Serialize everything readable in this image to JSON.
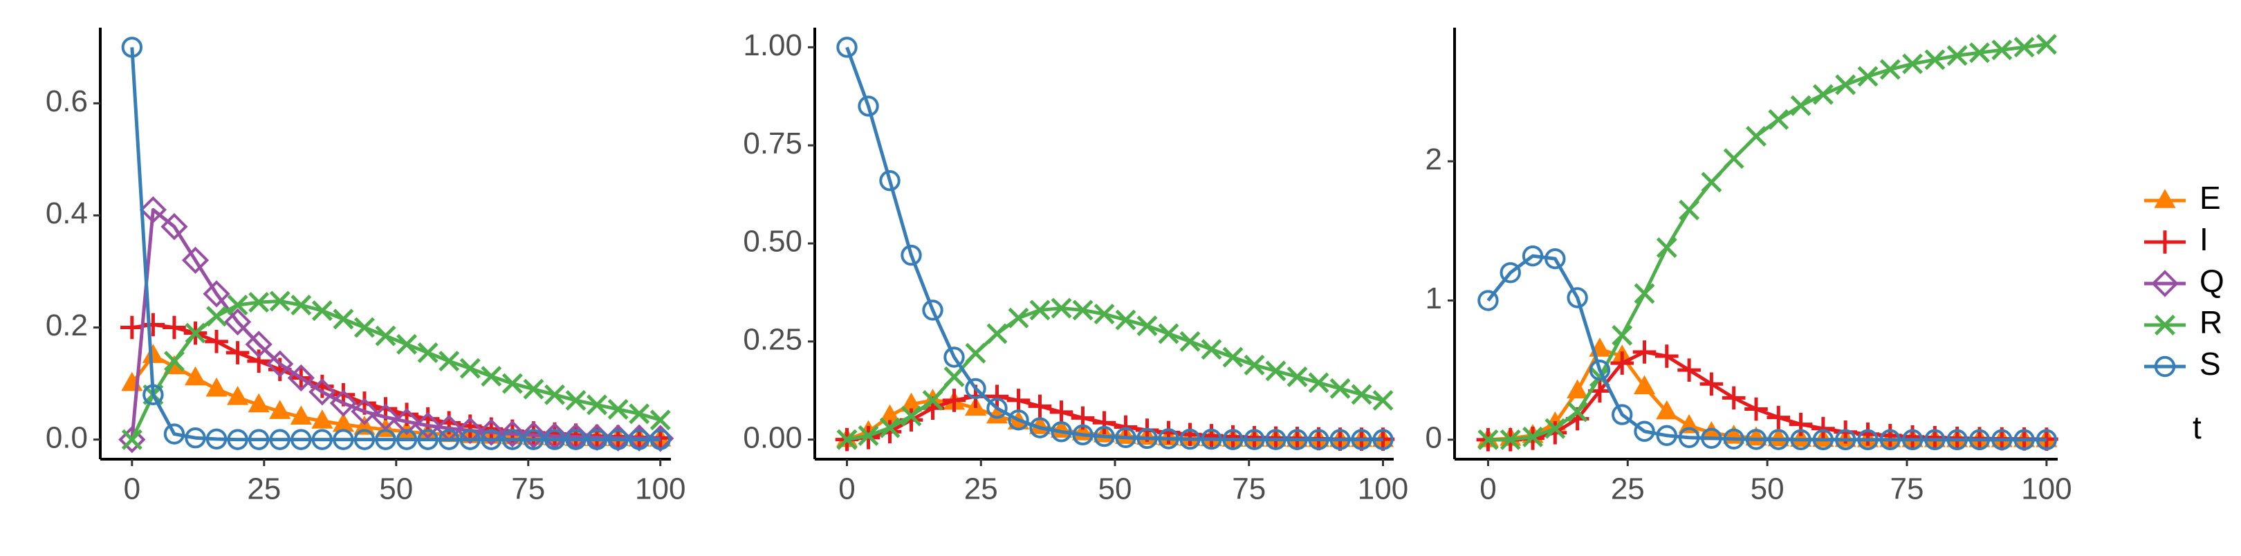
{
  "legend_title": "t",
  "chart_data": [
    {
      "type": "line",
      "x": [
        0,
        4,
        8,
        12,
        16,
        20,
        24,
        28,
        32,
        36,
        40,
        44,
        48,
        52,
        56,
        60,
        64,
        68,
        72,
        76,
        80,
        84,
        88,
        92,
        96,
        100
      ],
      "xlim": [
        -6,
        102
      ],
      "xticks": [
        0,
        25,
        50,
        75,
        100
      ],
      "ylim": [
        -0.035,
        0.735
      ],
      "yticks": [
        {
          "value": 0,
          "label": "0.0"
        },
        0.2,
        0.4,
        0.6
      ],
      "series": [
        {
          "name": "E",
          "color": "#ff7f00",
          "marker": "triangle",
          "values": [
            0.1,
            0.15,
            0.13,
            0.11,
            0.09,
            0.075,
            0.062,
            0.05,
            0.04,
            0.033,
            0.027,
            0.022,
            0.018,
            0.014,
            0.011,
            0.009,
            0.007,
            0.006,
            0.005,
            0.004,
            0.003,
            0.002,
            0.002,
            0.002,
            0.001,
            0.001
          ]
        },
        {
          "name": "I",
          "color": "#e41a1c",
          "marker": "plus",
          "values": [
            0.2,
            0.205,
            0.2,
            0.19,
            0.175,
            0.155,
            0.14,
            0.125,
            0.11,
            0.095,
            0.08,
            0.065,
            0.055,
            0.045,
            0.037,
            0.03,
            0.024,
            0.019,
            0.015,
            0.012,
            0.01,
            0.008,
            0.006,
            0.005,
            0.004,
            0.003
          ]
        },
        {
          "name": "Q",
          "color": "#984ea3",
          "marker": "diamond",
          "values": [
            0,
            0.41,
            0.38,
            0.32,
            0.26,
            0.21,
            0.17,
            0.135,
            0.11,
            0.085,
            0.065,
            0.05,
            0.04,
            0.032,
            0.025,
            0.02,
            0.016,
            0.013,
            0.01,
            0.008,
            0.006,
            0.005,
            0.004,
            0.003,
            0.003,
            0.002
          ]
        },
        {
          "name": "R",
          "color": "#4daf4a",
          "marker": "cross",
          "values": [
            0,
            0.08,
            0.14,
            0.19,
            0.22,
            0.24,
            0.245,
            0.247,
            0.24,
            0.23,
            0.215,
            0.2,
            0.185,
            0.17,
            0.155,
            0.14,
            0.127,
            0.113,
            0.1,
            0.09,
            0.08,
            0.07,
            0.062,
            0.054,
            0.046,
            0.035
          ]
        },
        {
          "name": "S",
          "color": "#377eb8",
          "marker": "circle",
          "values": [
            0.7,
            0.08,
            0.01,
            0.003,
            0.001,
            0,
            0,
            0,
            0,
            0,
            0,
            0,
            0,
            0,
            0,
            0,
            0,
            0,
            0,
            0,
            0,
            0,
            0,
            0,
            0,
            0
          ]
        }
      ]
    },
    {
      "type": "line",
      "x": [
        0,
        4,
        8,
        12,
        16,
        20,
        24,
        28,
        32,
        36,
        40,
        44,
        48,
        52,
        56,
        60,
        64,
        68,
        72,
        76,
        80,
        84,
        88,
        92,
        96,
        100
      ],
      "xlim": [
        -6,
        102
      ],
      "xticks": [
        0,
        25,
        50,
        75,
        100
      ],
      "ylim": [
        -0.05,
        1.05
      ],
      "yticks": [
        {
          "value": 0,
          "label": "0.00"
        },
        0.25,
        {
          "value": 0.5,
          "label": "0.50"
        },
        0.75,
        {
          "value": 1,
          "label": "1.00"
        }
      ],
      "series": [
        {
          "name": "E",
          "color": "#ff7f00",
          "marker": "triangle",
          "values": [
            0,
            0.02,
            0.06,
            0.09,
            0.1,
            0.095,
            0.08,
            0.06,
            0.045,
            0.033,
            0.024,
            0.017,
            0.012,
            0.008,
            0.006,
            0.004,
            0.003,
            0.002,
            0.001,
            0.001,
            0.001,
            0,
            0,
            0,
            0,
            0
          ]
        },
        {
          "name": "I",
          "color": "#e41a1c",
          "marker": "plus",
          "values": [
            0,
            0.005,
            0.02,
            0.05,
            0.08,
            0.1,
            0.11,
            0.11,
            0.1,
            0.085,
            0.07,
            0.055,
            0.043,
            0.032,
            0.024,
            0.018,
            0.013,
            0.01,
            0.007,
            0.005,
            0.004,
            0.003,
            0.002,
            0.001,
            0.001,
            0.001
          ]
        },
        {
          "name": "R",
          "color": "#4daf4a",
          "marker": "cross",
          "values": [
            0,
            0.01,
            0.03,
            0.06,
            0.1,
            0.16,
            0.22,
            0.27,
            0.31,
            0.33,
            0.335,
            0.33,
            0.32,
            0.305,
            0.29,
            0.27,
            0.25,
            0.23,
            0.21,
            0.19,
            0.175,
            0.16,
            0.145,
            0.13,
            0.115,
            0.1
          ]
        },
        {
          "name": "S",
          "color": "#377eb8",
          "marker": "circle",
          "values": [
            1.0,
            0.85,
            0.66,
            0.47,
            0.33,
            0.21,
            0.13,
            0.08,
            0.05,
            0.03,
            0.02,
            0.012,
            0.008,
            0.005,
            0.003,
            0.002,
            0.001,
            0.001,
            0,
            0,
            0,
            0,
            0,
            0,
            0,
            0
          ]
        }
      ]
    },
    {
      "type": "line",
      "x": [
        0,
        4,
        8,
        12,
        16,
        20,
        24,
        28,
        32,
        36,
        40,
        44,
        48,
        52,
        56,
        60,
        64,
        68,
        72,
        76,
        80,
        84,
        88,
        92,
        96,
        100
      ],
      "xlim": [
        -6,
        102
      ],
      "xticks": [
        0,
        25,
        50,
        75,
        100
      ],
      "ylim": [
        -0.14,
        2.96
      ],
      "yticks": [
        0,
        1,
        2
      ],
      "series": [
        {
          "name": "E",
          "color": "#ff7f00",
          "marker": "triangle",
          "values": [
            0,
            0.01,
            0.03,
            0.12,
            0.35,
            0.65,
            0.6,
            0.38,
            0.2,
            0.1,
            0.05,
            0.025,
            0.012,
            0.006,
            0.003,
            0.002,
            0.001,
            0,
            0,
            0,
            0,
            0,
            0,
            0,
            0,
            0
          ]
        },
        {
          "name": "I",
          "color": "#e41a1c",
          "marker": "plus",
          "values": [
            0,
            0,
            0.01,
            0.05,
            0.15,
            0.35,
            0.55,
            0.63,
            0.6,
            0.5,
            0.4,
            0.3,
            0.22,
            0.16,
            0.11,
            0.08,
            0.055,
            0.04,
            0.03,
            0.02,
            0.015,
            0.01,
            0.008,
            0.006,
            0.005,
            0.004
          ]
        },
        {
          "name": "R",
          "color": "#4daf4a",
          "marker": "cross",
          "values": [
            0,
            0,
            0.02,
            0.08,
            0.2,
            0.45,
            0.75,
            1.05,
            1.38,
            1.65,
            1.85,
            2.02,
            2.18,
            2.3,
            2.4,
            2.48,
            2.55,
            2.61,
            2.66,
            2.7,
            2.73,
            2.76,
            2.78,
            2.8,
            2.82,
            2.84
          ]
        },
        {
          "name": "S",
          "color": "#377eb8",
          "marker": "circle",
          "values": [
            1.0,
            1.2,
            1.32,
            1.3,
            1.02,
            0.5,
            0.18,
            0.06,
            0.03,
            0.015,
            0.01,
            0.005,
            0.002,
            0.001,
            0,
            0,
            0,
            0,
            0,
            0,
            0,
            0,
            0,
            0,
            0,
            0
          ]
        }
      ]
    }
  ]
}
